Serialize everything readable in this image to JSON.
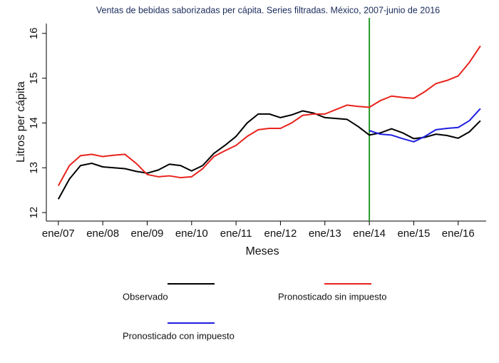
{
  "chart_data": {
    "type": "line",
    "title": "Ventas de bebidas saborizadas per cápita. Series filtradas. México, 2007-junio de 2016",
    "x_label": "Meses",
    "y_label": "Litros per cápita",
    "x": [
      2007,
      2007.25,
      2007.5,
      2007.75,
      2008,
      2008.25,
      2008.5,
      2008.75,
      2009,
      2009.25,
      2009.5,
      2009.75,
      2010,
      2010.25,
      2010.5,
      2010.75,
      2011,
      2011.25,
      2011.5,
      2011.75,
      2012,
      2012.25,
      2012.5,
      2012.75,
      2013,
      2013.25,
      2013.5,
      2013.75,
      2014,
      2014.25,
      2014.5,
      2014.75,
      2015,
      2015.25,
      2015.5,
      2015.75,
      2016,
      2016.25,
      2016.5
    ],
    "series": [
      {
        "name": "Observado",
        "color": "#000000",
        "values": [
          12.3,
          12.75,
          13.05,
          13.1,
          13.02,
          13.0,
          12.98,
          12.92,
          12.88,
          12.95,
          13.08,
          13.05,
          12.93,
          13.05,
          13.32,
          13.5,
          13.7,
          14.0,
          14.2,
          14.2,
          14.12,
          14.18,
          14.27,
          14.22,
          14.12,
          14.1,
          14.08,
          13.92,
          13.73,
          13.78,
          13.87,
          13.78,
          13.65,
          13.68,
          13.75,
          13.72,
          13.66,
          13.8,
          14.05
        ]
      },
      {
        "name": "Pronosticado sin impuesto",
        "color": "#e8231c",
        "values": [
          12.6,
          13.05,
          13.27,
          13.3,
          13.25,
          13.28,
          13.3,
          13.1,
          12.85,
          12.8,
          12.82,
          12.78,
          12.8,
          12.98,
          13.25,
          13.38,
          13.5,
          13.7,
          13.85,
          13.88,
          13.88,
          14.0,
          14.17,
          14.2,
          14.2,
          14.3,
          14.4,
          14.37,
          14.35,
          14.5,
          14.6,
          14.57,
          14.55,
          14.7,
          14.88,
          14.95,
          15.05,
          15.35,
          15.72
        ]
      },
      {
        "name": "Pronosticado con impuesto",
        "color": "#1f1fe0",
        "values": [
          null,
          null,
          null,
          null,
          null,
          null,
          null,
          null,
          null,
          null,
          null,
          null,
          null,
          null,
          null,
          null,
          null,
          null,
          null,
          null,
          null,
          null,
          null,
          null,
          null,
          null,
          null,
          null,
          13.83,
          13.75,
          13.73,
          13.65,
          13.58,
          13.7,
          13.85,
          13.88,
          13.9,
          14.05,
          14.32
        ]
      }
    ],
    "xlim": [
      2006.73,
      2016.63
    ],
    "xticks": [
      {
        "value": 2007,
        "label": "ene/07"
      },
      {
        "value": 2008,
        "label": "ene/08"
      },
      {
        "value": 2009,
        "label": "ene/09"
      },
      {
        "value": 2010,
        "label": "ene/10"
      },
      {
        "value": 2011,
        "label": "ene/11"
      },
      {
        "value": 2012,
        "label": "ene/12"
      },
      {
        "value": 2013,
        "label": "ene/13"
      },
      {
        "value": 2014,
        "label": "ene/14"
      },
      {
        "value": 2015,
        "label": "ene/15"
      },
      {
        "value": 2016,
        "label": "ene/16"
      }
    ],
    "ylim": [
      11.81,
      16.22
    ],
    "yticks": [
      12,
      13,
      14,
      15,
      16
    ],
    "grid": false,
    "vline": {
      "x": 2014,
      "color": "#2a9a2a"
    },
    "legend": "bottom"
  }
}
